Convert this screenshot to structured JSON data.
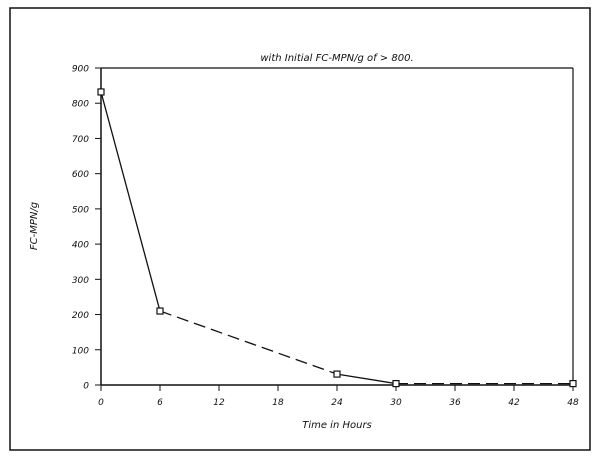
{
  "chart_data": {
    "type": "line",
    "title": "with Initial FC-MPN/g of > 800.",
    "xlabel": "Time in Hours",
    "ylabel": "FC-MPN/g",
    "xlim": [
      0,
      48
    ],
    "ylim": [
      0,
      900
    ],
    "xticks": [
      0,
      6,
      12,
      18,
      24,
      30,
      36,
      42,
      48
    ],
    "yticks": [
      0,
      100,
      200,
      300,
      400,
      500,
      600,
      700,
      800,
      900
    ],
    "grid": false,
    "series": [
      {
        "x": [
          0,
          6,
          24,
          30,
          48
        ],
        "y": [
          832,
          210,
          31,
          4,
          4
        ],
        "segment_styles": [
          "solid",
          "dashed",
          "solid",
          "dashed"
        ],
        "marker": "square",
        "color": "#111111"
      }
    ]
  }
}
